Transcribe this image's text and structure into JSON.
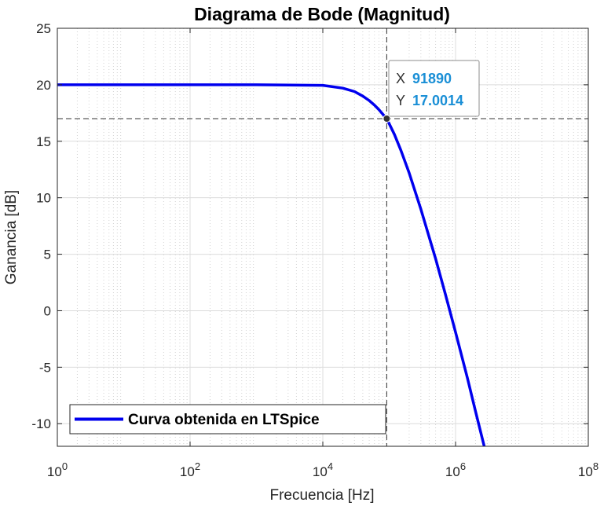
{
  "chart_data": {
    "type": "line",
    "title": "Diagrama de Bode (Magnitud)",
    "xlabel": "Frecuencia [Hz]",
    "ylabel": "Ganancia [dB]",
    "xscale": "log",
    "xlim": [
      1,
      100000000
    ],
    "ylim": [
      -12,
      25
    ],
    "x_ticks": [
      {
        "value": 1,
        "base": "10",
        "exp": "0"
      },
      {
        "value": 100,
        "base": "10",
        "exp": "2"
      },
      {
        "value": 10000,
        "base": "10",
        "exp": "4"
      },
      {
        "value": 1000000,
        "base": "10",
        "exp": "6"
      },
      {
        "value": 100000000,
        "base": "10",
        "exp": "8"
      }
    ],
    "y_ticks": [
      {
        "value": 25,
        "label": "25"
      },
      {
        "value": 20,
        "label": "20"
      },
      {
        "value": 15,
        "label": "15"
      },
      {
        "value": 10,
        "label": "10"
      },
      {
        "value": 5,
        "label": "5"
      },
      {
        "value": 0,
        "label": "0"
      },
      {
        "value": -5,
        "label": "-5"
      },
      {
        "value": -10,
        "label": "-10"
      }
    ],
    "grid": true,
    "minor_grid": true,
    "legend_position": "bottom-left",
    "series": [
      {
        "name": "Curva obtenida en LTSpice",
        "color": "#0000ee",
        "x": [
          1,
          10,
          100,
          1000,
          10000,
          20000,
          30000,
          40000,
          50000,
          60000,
          70000,
          80000,
          91890,
          120000,
          150000,
          200000,
          300000,
          500000,
          700000,
          1000000,
          1500000,
          2000000,
          2700000
        ],
        "y": [
          20,
          20,
          20,
          20,
          19.95,
          19.7,
          19.4,
          19.0,
          18.6,
          18.2,
          17.8,
          17.4,
          17.0014,
          15.6,
          14.2,
          12.2,
          9.0,
          4.6,
          1.5,
          -1.9,
          -5.9,
          -8.9,
          -12
        ]
      }
    ],
    "datatip": {
      "x_key": "X",
      "x_value": "91890",
      "y_key": "Y",
      "y_value": "17.0014",
      "x": 91890,
      "y": 17.0014
    }
  }
}
